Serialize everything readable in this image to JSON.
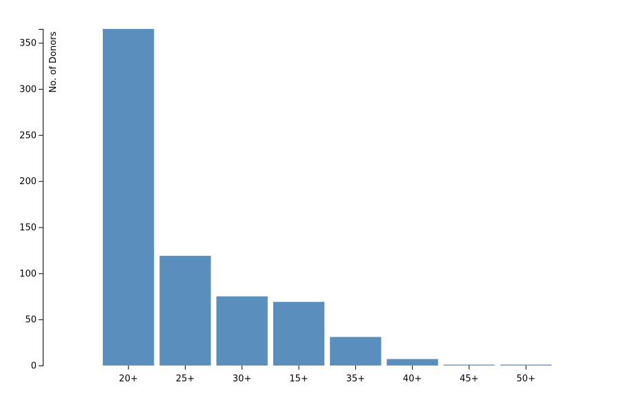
{
  "chart_data": {
    "type": "bar",
    "title": "",
    "xlabel": "",
    "ylabel": "No. of Donors",
    "categories": [
      "20+",
      "25+",
      "30+",
      "15+",
      "35+",
      "40+",
      "45+",
      "50+"
    ],
    "values": [
      365,
      119,
      75,
      69,
      31,
      7,
      1,
      1
    ],
    "ylim": [
      0,
      365
    ],
    "yticks": [
      0,
      50,
      100,
      150,
      200,
      250,
      300,
      350
    ],
    "grid": false,
    "legend": "none",
    "colors": {
      "bar": "#5a8fbd",
      "axis": "#000000"
    }
  }
}
